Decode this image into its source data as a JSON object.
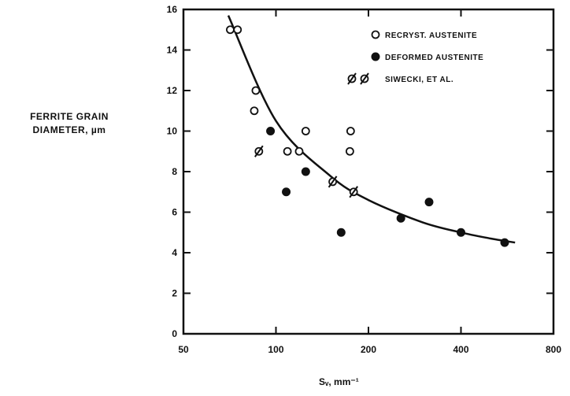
{
  "chart_data": {
    "type": "scatter",
    "title": "",
    "xlabel": "Sᵥ, mm⁻¹",
    "ylabel_line1": "FERRITE GRAIN",
    "ylabel_line2": "DIAMETER, µm",
    "x_scale": "log",
    "xlim": [
      50,
      800
    ],
    "ylim": [
      0,
      16
    ],
    "x_ticks": [
      50,
      100,
      200,
      400,
      800
    ],
    "x_tick_labels": [
      "50",
      "100",
      "200",
      "400",
      "800"
    ],
    "y_ticks": [
      0,
      2,
      4,
      6,
      8,
      10,
      12,
      14,
      16
    ],
    "y_tick_labels": [
      "0",
      "2",
      "4",
      "6",
      "8",
      "10",
      "12",
      "14",
      "16"
    ],
    "grid": false,
    "legend_position": "top-right",
    "series": [
      {
        "name": "RECRYST. AUSTENITE",
        "marker": "open-circle",
        "points": [
          [
            71,
            15
          ],
          [
            75,
            15
          ],
          [
            86,
            12
          ],
          [
            85,
            11
          ],
          [
            109,
            9
          ],
          [
            119,
            9
          ],
          [
            125,
            10
          ],
          [
            175,
            10
          ],
          [
            174,
            9
          ]
        ]
      },
      {
        "name": "DEFORMED AUSTENITE",
        "marker": "filled-circle",
        "points": [
          [
            96,
            10
          ],
          [
            108,
            7
          ],
          [
            125,
            8
          ],
          [
            163,
            5
          ],
          [
            255,
            5.7
          ],
          [
            315,
            6.5
          ],
          [
            400,
            5
          ],
          [
            555,
            4.5
          ]
        ]
      },
      {
        "name": "SIWECKI, ET AL.",
        "marker": "slashed-circle",
        "points": [
          [
            88,
            9
          ],
          [
            153,
            7.5
          ],
          [
            179,
            7
          ]
        ]
      }
    ],
    "fit_curve": [
      [
        70,
        15.7
      ],
      [
        100,
        10.5
      ],
      [
        150,
        7.8
      ],
      [
        200,
        6.6
      ],
      [
        300,
        5.5
      ],
      [
        400,
        5.0
      ],
      [
        500,
        4.7
      ],
      [
        600,
        4.5
      ]
    ]
  }
}
